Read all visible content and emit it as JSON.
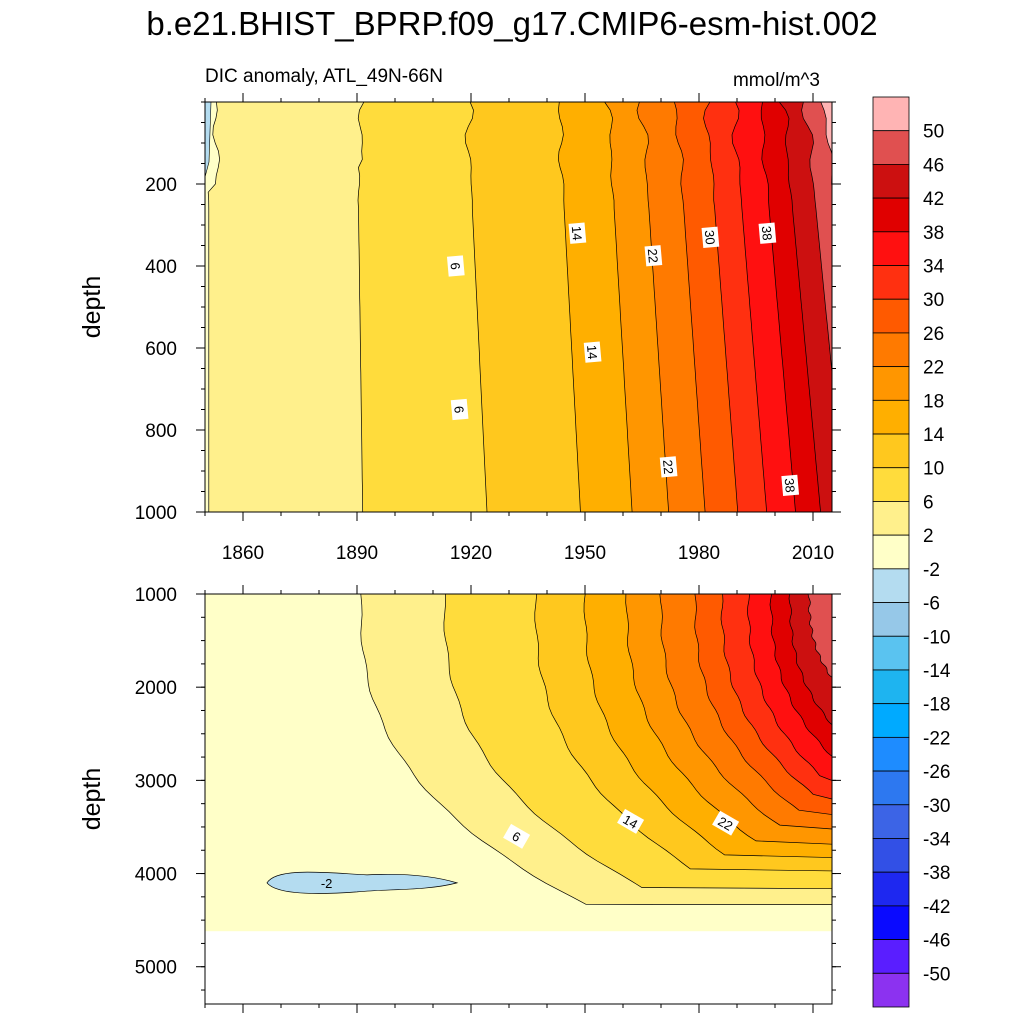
{
  "chart_data": {
    "type": "heatmap",
    "title": "b.e21.BHIST_BPRP.f09_g17.CMIP6-esm-hist.002",
    "subtitle_left": "DIC anomaly, ATL_49N-66N",
    "subtitle_right": "mmol/m^3",
    "colorbar": {
      "labels": [
        "50",
        "46",
        "42",
        "38",
        "34",
        "30",
        "26",
        "22",
        "18",
        "14",
        "10",
        "6",
        "2",
        "-2",
        "-6",
        "-10",
        "-14",
        "-18",
        "-22",
        "-26",
        "-30",
        "-34",
        "-38",
        "-42",
        "-46",
        "-50"
      ],
      "colors": [
        "#ffb4b4",
        "#e05050",
        "#cc1010",
        "#e00000",
        "#ff1010",
        "#ff3010",
        "#ff5a00",
        "#ff7a00",
        "#ff9600",
        "#ffaf00",
        "#ffc81e",
        "#ffdc3c",
        "#fff08c",
        "#ffffc8",
        "#b4dcf0",
        "#96c8e8",
        "#5ac3f0",
        "#1eb4f0",
        "#00aaff",
        "#1e8cff",
        "#2d78f0",
        "#3c64e6",
        "#3250e6",
        "#1e28f0",
        "#0a0aff",
        "#5a1eff",
        "#8c32f0"
      ]
    },
    "x": {
      "label": "",
      "range": [
        1850,
        2015
      ],
      "ticks": [
        1860,
        1890,
        1920,
        1950,
        1980,
        2010
      ]
    },
    "panels": [
      {
        "name": "upper-ocean",
        "ylabel": "depth",
        "ylim": [
          0,
          1000
        ],
        "yticks": [
          "200",
          "400",
          "600",
          "800",
          "1000"
        ],
        "ytick_values": [
          200,
          400,
          600,
          800,
          1000
        ],
        "contours_x_at_top": [
          {
            "level": 2,
            "year": 1852
          },
          {
            "level": 6,
            "year": 1891
          },
          {
            "level": 10,
            "year": 1919
          },
          {
            "level": 14,
            "year": 1943
          },
          {
            "level": 18,
            "year": 1956
          },
          {
            "level": 22,
            "year": 1965
          },
          {
            "level": 26,
            "year": 1974
          },
          {
            "level": 30,
            "year": 1982
          },
          {
            "level": 34,
            "year": 1989
          },
          {
            "level": 38,
            "year": 1996
          },
          {
            "level": 42,
            "year": 2002
          },
          {
            "level": 46,
            "year": 2008
          },
          {
            "level": 50,
            "year": 2013
          }
        ],
        "contour_labels": [
          {
            "text": "6",
            "year": 1916,
            "depth": 400
          },
          {
            "text": "6",
            "year": 1917,
            "depth": 750
          },
          {
            "text": "14",
            "year": 1948,
            "depth": 320
          },
          {
            "text": "14",
            "year": 1952,
            "depth": 610
          },
          {
            "text": "22",
            "year": 1968,
            "depth": 375
          },
          {
            "text": "22",
            "year": 1972,
            "depth": 890
          },
          {
            "text": "30",
            "year": 1983,
            "depth": 330
          },
          {
            "text": "38",
            "year": 1998,
            "depth": 320
          },
          {
            "text": "38",
            "year": 2004,
            "depth": 935
          }
        ]
      },
      {
        "name": "deep-ocean",
        "ylabel": "depth",
        "ylim": [
          1000,
          5400
        ],
        "yticks": [
          "1000",
          "2000",
          "3000",
          "4000",
          "5000"
        ],
        "ytick_values": [
          1000,
          2000,
          3000,
          4000,
          5000
        ],
        "bottom_depth": 4620,
        "contour_labels": [
          {
            "text": "6",
            "year": 1932,
            "depth": 3600
          },
          {
            "text": "14",
            "year": 1962,
            "depth": 3440
          },
          {
            "text": "22",
            "year": 1987,
            "depth": 3460
          },
          {
            "text": "-2",
            "year": 1882,
            "depth": 4100
          }
        ]
      }
    ]
  }
}
